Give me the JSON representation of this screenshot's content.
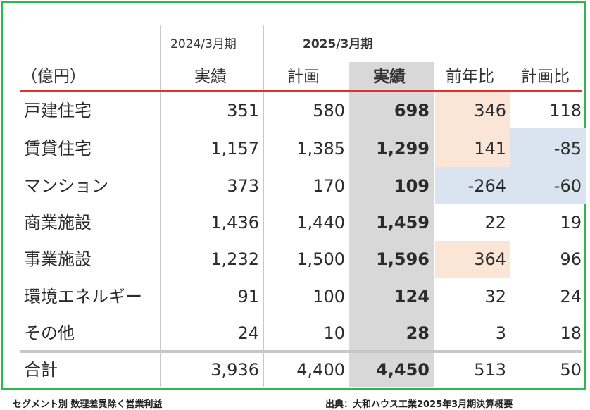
{
  "table": {
    "unit_label": "（億円）",
    "period_prev": "2024/3月期",
    "period_curr": "2025/3月期",
    "columns": [
      "実績",
      "計画",
      "実績",
      "前年比",
      "計画比"
    ],
    "rows": [
      {
        "label": "戸建住宅",
        "values": [
          "351",
          "580",
          "698",
          "346",
          "118"
        ]
      },
      {
        "label": "賃貸住宅",
        "values": [
          "1,157",
          "1,385",
          "1,299",
          "141",
          "-85"
        ]
      },
      {
        "label": "マンション",
        "values": [
          "373",
          "170",
          "109",
          "-264",
          "-60"
        ]
      },
      {
        "label": "商業施設",
        "values": [
          "1,436",
          "1,440",
          "1,459",
          "22",
          "19"
        ]
      },
      {
        "label": "事業施設",
        "values": [
          "1,232",
          "1,500",
          "1,596",
          "364",
          "96"
        ]
      },
      {
        "label": "環境エネルギー",
        "values": [
          "91",
          "100",
          "124",
          "32",
          "24"
        ]
      },
      {
        "label": "その他",
        "values": [
          "24",
          "10",
          "28",
          "3",
          "18"
        ]
      }
    ],
    "total": {
      "label": "合計",
      "values": [
        "3,936",
        "4,400",
        "4,450",
        "513",
        "50"
      ]
    },
    "highlight_colors": {
      "increase": "#fbe5d6",
      "decrease": "#dae3f0",
      "current_actual": "#d8d8d8",
      "border": "#2eb84a",
      "header_rule": "#e03030"
    }
  },
  "footer": {
    "left": "セグメント別 数理差異除く営業利益",
    "right": "出典：大和ハウス工業2025年3月期決算概要"
  }
}
